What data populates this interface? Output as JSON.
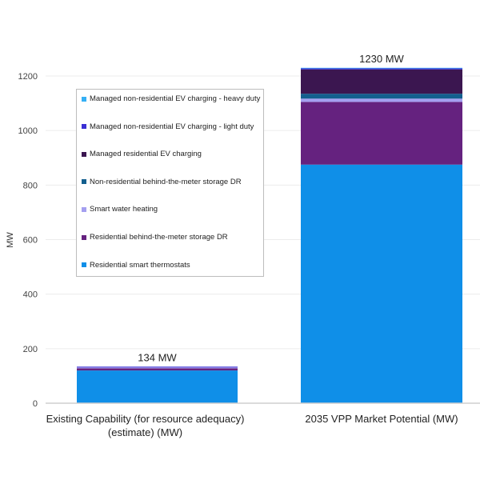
{
  "chart_data": {
    "type": "bar",
    "stacked": true,
    "title": "",
    "xlabel": "",
    "ylabel": "MW",
    "ylim": [
      0,
      1230
    ],
    "yticks": [
      0,
      200,
      400,
      600,
      800,
      1000,
      1200
    ],
    "grid": true,
    "legend_position": "top-left (inside plot)",
    "categories": [
      [
        "Existing Capability (for resource adequacy)",
        "(estimate) (MW)"
      ],
      [
        "2035 VPP Market Potential (MW)"
      ]
    ],
    "totals": [
      "134 MW",
      "1230 MW"
    ],
    "series": [
      {
        "name": "Residential smart thermostats",
        "color": "#0f8fe8",
        "values": [
          120,
          875
        ]
      },
      {
        "name": "Residential behind-the-meter storage DR",
        "color": "#65227f",
        "values": [
          8,
          230
        ]
      },
      {
        "name": "Smart water heating",
        "color": "#a49ff0",
        "values": [
          3,
          12
        ]
      },
      {
        "name": "Non-residential behind-the-meter storage DR",
        "color": "#135f8e",
        "values": [
          0,
          18
        ]
      },
      {
        "name": "Managed residential EV charging",
        "color": "#3b1650",
        "values": [
          0,
          89
        ]
      },
      {
        "name": "Managed non-residential EV charging - light duty",
        "color": "#3a2fd4",
        "values": [
          3,
          4
        ]
      },
      {
        "name": "Managed non-residential EV charging - heavy duty",
        "color": "#35b0f5",
        "values": [
          0,
          2
        ]
      }
    ],
    "legend_order": [
      "Managed non-residential EV charging - heavy duty",
      "Managed non-residential EV charging - light duty",
      "Managed residential EV charging",
      "Non-residential behind-the-meter storage DR",
      "Smart water heating",
      "Residential behind-the-meter storage DR",
      "Residential smart thermostats"
    ]
  }
}
